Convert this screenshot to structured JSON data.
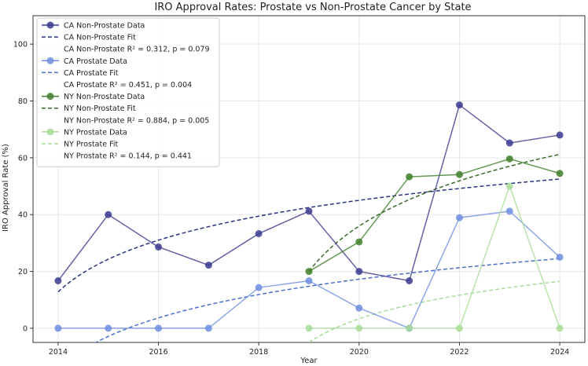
{
  "chart_data": {
    "type": "line",
    "title": "IRO Approval Rates: Prostate vs Non-Prostate Cancer by State",
    "xlabel": "Year",
    "ylabel": "IRO Approval Rate (%)",
    "xlim": [
      2013.5,
      2024.5
    ],
    "ylim": [
      -5,
      110
    ],
    "xticks": [
      2014,
      2016,
      2018,
      2020,
      2022,
      2024
    ],
    "yticks": [
      0,
      20,
      40,
      60,
      80,
      100
    ],
    "grid": true,
    "legend_position": "top-left",
    "series": [
      {
        "name": "CA Non-Prostate Data",
        "fit_name": "CA Non-Prostate Fit",
        "stats": "CA Non-Prostate R² = 0.312, p = 0.079",
        "color": "#3b3b8f",
        "fit_color": "#2a3580",
        "x": [
          2014,
          2015,
          2016,
          2017,
          2018,
          2019,
          2020,
          2021,
          2022,
          2023,
          2024
        ],
        "values": [
          16.7,
          40.0,
          28.6,
          22.2,
          33.3,
          41.2,
          20.0,
          16.7,
          78.6,
          65.2,
          68.0
        ],
        "fit": {
          "a": 12.8,
          "b": 16.56,
          "x0": 2013
        }
      },
      {
        "name": "CA Prostate Data",
        "fit_name": "CA Prostate Fit",
        "stats": "CA Prostate R² = 0.451, p = 0.004",
        "color": "#6e8ee0",
        "fit_color": "#4a70d0",
        "x": [
          2014,
          2015,
          2016,
          2017,
          2018,
          2019,
          2020,
          2021,
          2022,
          2023,
          2024
        ],
        "values": [
          0,
          0,
          0,
          0,
          14.3,
          16.7,
          7.1,
          0,
          38.9,
          41.2,
          25.0
        ],
        "fit": {
          "a": -14.0,
          "b": 16.06,
          "x0": 2013
        }
      },
      {
        "name": "NY Non-Prostate Data",
        "fit_name": "NY Non-Prostate Fit",
        "stats": "NY Non-Prostate R² = 0.884, p = 0.005",
        "color": "#3e7f2a",
        "fit_color": "#3a6a2a",
        "x": [
          2019,
          2020,
          2021,
          2022,
          2023,
          2024
        ],
        "values": [
          20.0,
          30.4,
          53.3,
          54.1,
          59.6,
          54.5
        ],
        "fit": {
          "a": 20.0,
          "b": 23.0,
          "x0": 2018
        }
      },
      {
        "name": "NY Prostate Data",
        "fit_name": "NY Prostate Fit",
        "stats": "NY Prostate R² = 0.144, p = 0.441",
        "color": "#a8dc98",
        "fit_color": "#a8dc98",
        "x": [
          2019,
          2020,
          2021,
          2022,
          2023,
          2024
        ],
        "values": [
          0,
          0,
          0,
          0,
          50.0,
          0
        ],
        "fit": {
          "a": -5.0,
          "b": 12.0,
          "x0": 2018
        }
      }
    ]
  }
}
